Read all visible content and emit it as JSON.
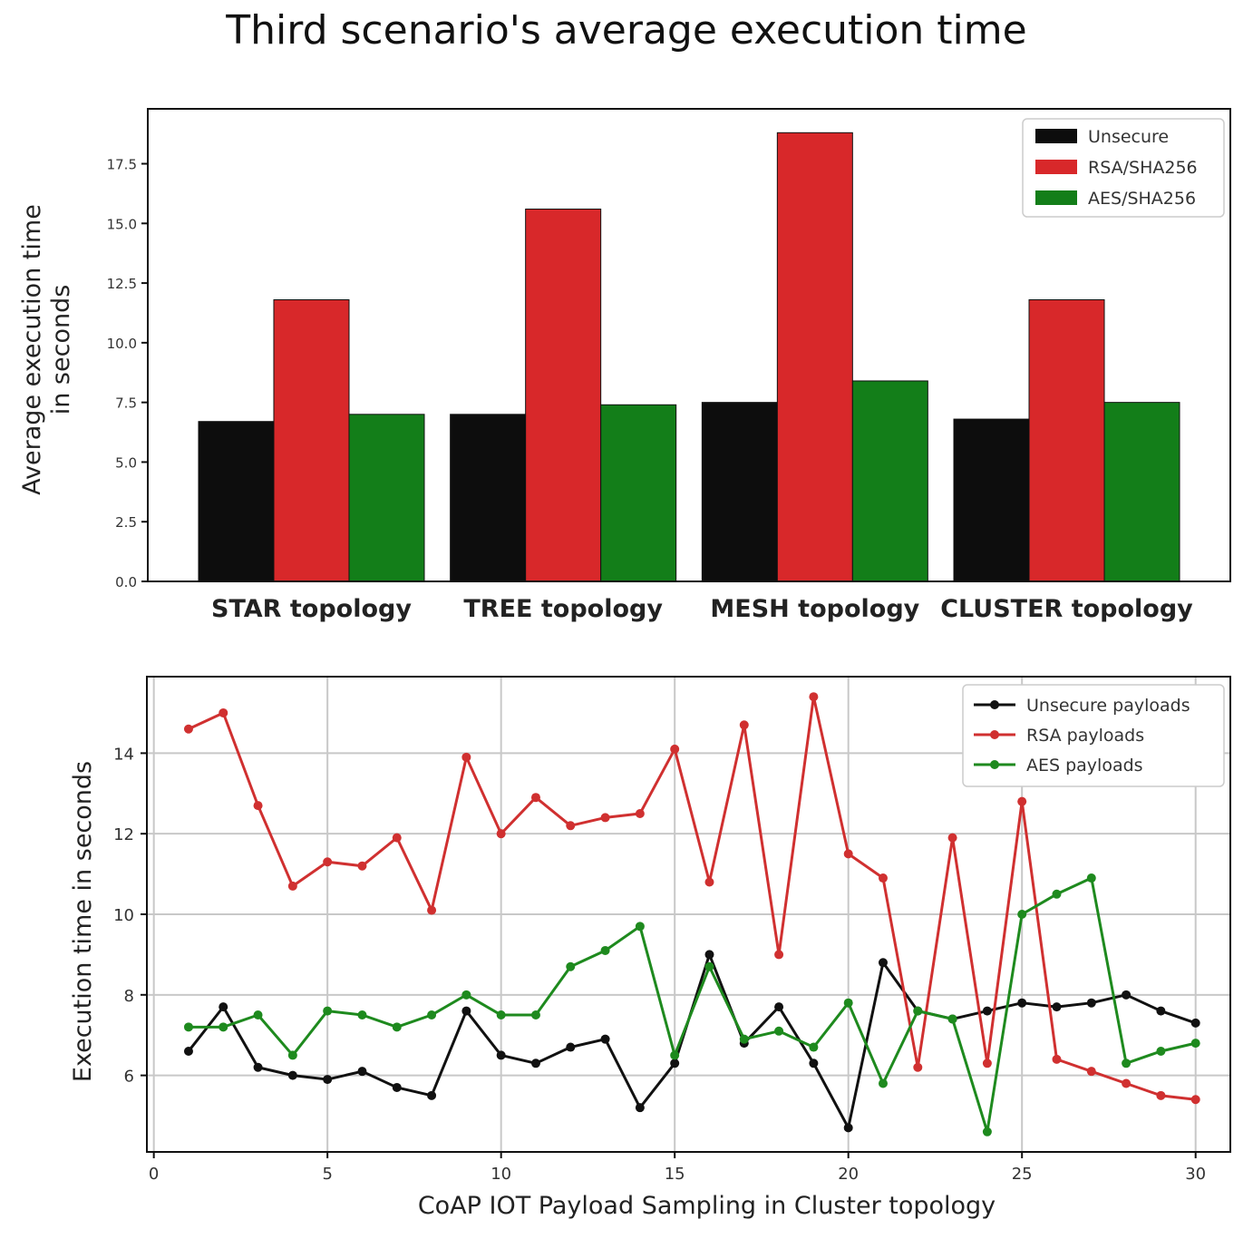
{
  "figure_title": "Third scenario's average execution time",
  "chart_data": [
    {
      "type": "bar",
      "ylabel": "Average execution time\nin seconds",
      "xlabel": "",
      "categories": [
        "STAR topology",
        "TREE topology",
        "MESH topology",
        "CLUSTER topology"
      ],
      "series": [
        {
          "name": "Unsecure",
          "color": "#0d0d0d",
          "values": [
            6.7,
            7.0,
            7.5,
            6.8
          ]
        },
        {
          "name": "RSA/SHA256",
          "color": "#d8282a",
          "values": [
            11.8,
            15.6,
            18.8,
            11.8
          ]
        },
        {
          "name": "AES/SHA256",
          "color": "#137e19",
          "values": [
            7.0,
            7.4,
            8.4,
            7.5
          ]
        }
      ],
      "ylim": [
        0,
        19.8
      ],
      "yticks": [
        0.0,
        2.5,
        5.0,
        7.5,
        10.0,
        12.5,
        15.0,
        17.5
      ],
      "ytick_labels": [
        "0.0",
        "2.5",
        "5.0",
        "7.5",
        "10.0",
        "12.5",
        "15.0",
        "17.5"
      ],
      "grid": false,
      "legend": "top-right"
    },
    {
      "type": "line",
      "xlabel": "CoAP IOT Payload Sampling in Cluster topology",
      "ylabel": "Execution time in seconds",
      "x": [
        1,
        2,
        3,
        4,
        5,
        6,
        7,
        8,
        9,
        10,
        11,
        12,
        13,
        14,
        15,
        16,
        17,
        18,
        19,
        20,
        21,
        22,
        23,
        24,
        25,
        26,
        27,
        28,
        29,
        30
      ],
      "series": [
        {
          "name": "Unsecure payloads",
          "color": "#111111",
          "values": [
            6.6,
            7.7,
            6.2,
            6.0,
            5.9,
            6.1,
            5.7,
            5.5,
            7.6,
            6.5,
            6.3,
            6.7,
            6.9,
            5.2,
            6.3,
            9.0,
            6.8,
            7.7,
            6.3,
            4.7,
            8.8,
            7.6,
            7.4,
            7.6,
            7.8,
            7.7,
            7.8,
            8.0,
            7.6,
            7.3
          ]
        },
        {
          "name": "RSA payloads",
          "color": "#d03030",
          "values": [
            14.6,
            15.0,
            12.7,
            10.7,
            11.3,
            11.2,
            11.9,
            10.1,
            13.9,
            12.0,
            12.9,
            12.2,
            12.4,
            12.5,
            14.1,
            10.8,
            14.7,
            9.0,
            15.4,
            11.5,
            10.9,
            6.2,
            11.9,
            6.3,
            12.8,
            6.4,
            6.1,
            5.8,
            5.5,
            5.4
          ]
        },
        {
          "name": "AES payloads",
          "color": "#1e8a1e",
          "values": [
            7.2,
            7.2,
            7.5,
            6.5,
            7.6,
            7.5,
            7.2,
            7.5,
            8.0,
            7.5,
            7.5,
            8.7,
            9.1,
            9.7,
            6.5,
            8.7,
            6.9,
            7.1,
            6.7,
            7.8,
            5.8,
            7.6,
            7.4,
            4.6,
            10.0,
            10.5,
            10.9,
            6.3,
            6.6,
            6.8
          ]
        }
      ],
      "xlim": [
        -0.2,
        31.0
      ],
      "ylim": [
        4.1,
        15.9
      ],
      "xticks": [
        0,
        5,
        10,
        15,
        20,
        25,
        30
      ],
      "yticks": [
        6,
        8,
        10,
        12,
        14
      ],
      "grid": true,
      "legend": "top-right"
    }
  ]
}
